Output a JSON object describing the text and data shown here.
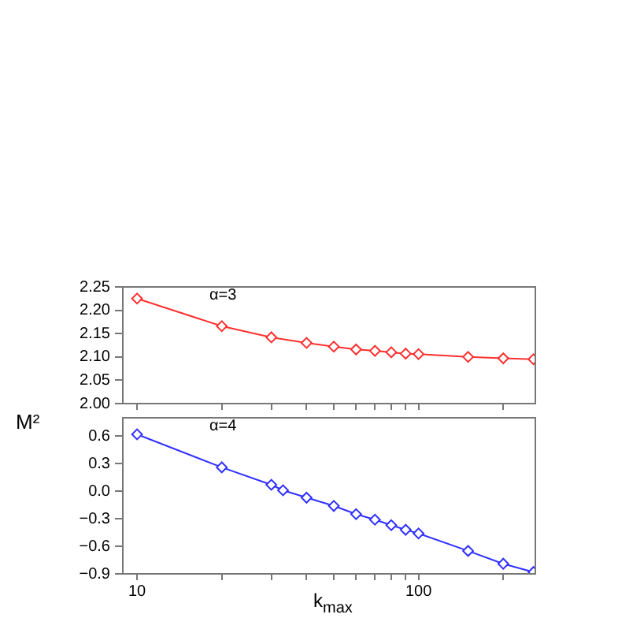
{
  "chart_data": [
    {
      "type": "line",
      "annotations": [
        "α=3"
      ],
      "x": [
        10,
        20,
        30,
        40,
        50,
        60,
        70,
        80,
        90,
        100,
        150,
        200,
        256
      ],
      "series": [
        {
          "color": "#ff3030",
          "values": [
            2.225,
            2.166,
            2.142,
            2.13,
            2.122,
            2.116,
            2.113,
            2.11,
            2.107,
            2.106,
            2.1,
            2.097,
            2.095
          ]
        }
      ],
      "log": "x",
      "xlim": [
        8.9,
        260
      ],
      "xticks": [
        {
          "value": 10,
          "label": null
        },
        {
          "value": 20,
          "label": null
        },
        {
          "value": 30,
          "label": null
        },
        {
          "value": 40,
          "label": null
        },
        {
          "value": 50,
          "label": null
        },
        {
          "value": 60,
          "label": null
        },
        {
          "value": 70,
          "label": null
        },
        {
          "value": 80,
          "label": null
        },
        {
          "value": 90,
          "label": null
        },
        {
          "value": 100,
          "label": null
        },
        {
          "value": 200,
          "label": null
        }
      ],
      "ylim": [
        2.0,
        2.25
      ],
      "yticks": [
        {
          "value": 2,
          "label": "2.00"
        },
        2.05,
        {
          "value": 2.1,
          "label": "2.10"
        },
        2.15,
        {
          "value": 2.2,
          "label": "2.20"
        },
        2.25
      ],
      "tick_labels": "y",
      "marker": "diamond",
      "grid": false,
      "legend": false,
      "ylabel": "M²"
    },
    {
      "type": "line",
      "annotations": [
        "α=4"
      ],
      "x": [
        10,
        20,
        30,
        33,
        40,
        50,
        60,
        70,
        80,
        90,
        100,
        150,
        200,
        256
      ],
      "series": [
        {
          "color": "#3030ff",
          "values": [
            0.62,
            0.26,
            0.07,
            0.01,
            -0.07,
            -0.16,
            -0.25,
            -0.31,
            -0.37,
            -0.42,
            -0.46,
            -0.65,
            -0.79,
            -0.88
          ]
        }
      ],
      "log": "x",
      "xlim": [
        8.9,
        260
      ],
      "xticks": [
        10,
        {
          "value": 20,
          "label": null
        },
        {
          "value": 30,
          "label": null
        },
        {
          "value": 40,
          "label": null
        },
        {
          "value": 50,
          "label": null
        },
        {
          "value": 60,
          "label": null
        },
        {
          "value": 70,
          "label": null
        },
        {
          "value": 80,
          "label": null
        },
        {
          "value": 90,
          "label": null
        },
        100,
        {
          "value": 200,
          "label": null
        }
      ],
      "ylim": [
        -0.9,
        0.8
      ],
      "yticks": [
        {
          "value": 0.6,
          "label": "0.6"
        },
        {
          "value": 0.3,
          "label": "0.3"
        },
        {
          "value": 0,
          "label": "0.0"
        },
        {
          "value": -0.3,
          "label": "−0.3"
        },
        {
          "value": -0.6,
          "label": "−0.6"
        },
        {
          "value": -0.9,
          "label": "−0.9"
        }
      ],
      "marker": "diamond",
      "grid": false,
      "legend": false,
      "xlabel": "k$_{max}$"
    }
  ]
}
